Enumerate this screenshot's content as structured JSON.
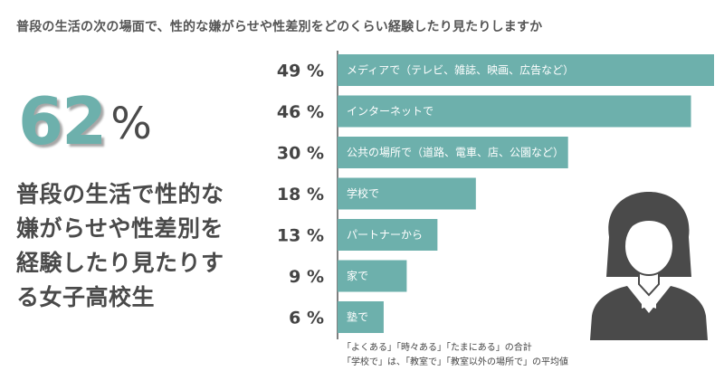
{
  "chart_data": {
    "type": "bar",
    "orientation": "horizontal",
    "title": "普段の生活の次の場面で、性的な嫌がらせや性差別をどのくらい経験したり見たりしますか",
    "categories": [
      "メディアで（テレビ、雑誌、映画、広告など）",
      "インターネットで",
      "公共の場所で（道路、電車、店、公園など）",
      "学校で",
      "パートナーから",
      "家で",
      "塾で"
    ],
    "values": [
      49,
      46,
      30,
      18,
      13,
      9,
      6
    ],
    "value_labels": [
      "49 %",
      "46 %",
      "30 %",
      "18 %",
      "13 %",
      "9 %",
      "6 %"
    ],
    "xlim": [
      0,
      49
    ],
    "grid": false,
    "color": "#6db0ac"
  },
  "highlight": {
    "number": "62",
    "unit": "%",
    "lines": [
      "普段の生活で性的な",
      "嫌がらせや性差別を",
      "経験したり見たりす",
      "る女子高校生"
    ]
  },
  "notes": [
    "「よくある」「時々ある」「たまにある」の合計",
    "「学校で」は、「教室で」「教室以外の場所で」の平均値"
  ],
  "icon": "female-student-avatar-icon"
}
